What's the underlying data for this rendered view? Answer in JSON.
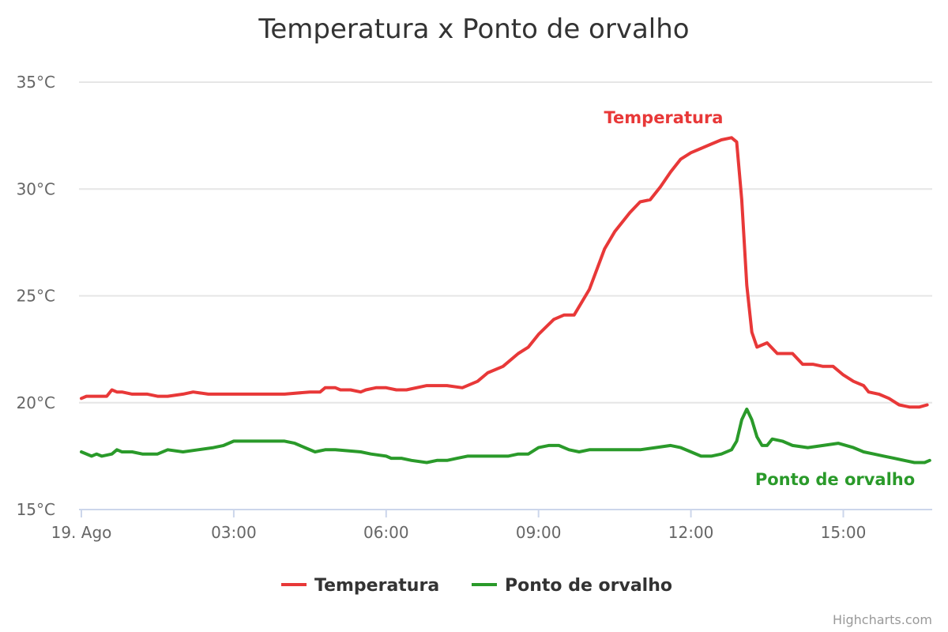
{
  "chart_data": {
    "type": "line",
    "title": "Temperatura x Ponto de orvalho",
    "ylim": [
      15,
      35
    ],
    "y_ticks": [
      "15°C",
      "20°C",
      "25°C",
      "30°C",
      "35°C"
    ],
    "y_tick_values": [
      15,
      20,
      25,
      30,
      35
    ],
    "xlim_hours": [
      0,
      16.75
    ],
    "x_ticks": [
      "19. Ago",
      "03:00",
      "06:00",
      "09:00",
      "12:00",
      "15:00"
    ],
    "x_tick_hours": [
      0,
      3,
      6,
      9,
      12,
      15
    ],
    "grid": true,
    "legend_position": "bottom-center",
    "series": [
      {
        "name": "Temperatura",
        "color": "#e83838",
        "x_hours": [
          0.0,
          0.1,
          0.3,
          0.5,
          0.6,
          0.7,
          0.8,
          1.0,
          1.2,
          1.3,
          1.5,
          1.6,
          1.7,
          2.0,
          2.2,
          2.5,
          2.8,
          3.0,
          4.0,
          4.5,
          4.7,
          4.8,
          5.0,
          5.1,
          5.3,
          5.5,
          5.6,
          5.8,
          6.0,
          6.2,
          6.4,
          6.8,
          7.2,
          7.5,
          7.8,
          8.0,
          8.3,
          8.6,
          8.8,
          9.0,
          9.3,
          9.5,
          9.7,
          10.0,
          10.3,
          10.5,
          10.8,
          11.0,
          11.2,
          11.4,
          11.6,
          11.8,
          12.0,
          12.2,
          12.4,
          12.6,
          12.8,
          12.9,
          13.0,
          13.1,
          13.2,
          13.3,
          13.5,
          13.7,
          13.8,
          14.0,
          14.2,
          14.4,
          14.6,
          14.8,
          15.0,
          15.2,
          15.4,
          15.5,
          15.7,
          15.9,
          16.1,
          16.3,
          16.5,
          16.65
        ],
        "y": [
          20.2,
          20.3,
          20.3,
          20.3,
          20.6,
          20.5,
          20.5,
          20.4,
          20.4,
          20.4,
          20.3,
          20.3,
          20.3,
          20.4,
          20.5,
          20.4,
          20.4,
          20.4,
          20.4,
          20.5,
          20.5,
          20.7,
          20.7,
          20.6,
          20.6,
          20.5,
          20.6,
          20.7,
          20.7,
          20.6,
          20.6,
          20.8,
          20.8,
          20.7,
          21.0,
          21.4,
          21.7,
          22.3,
          22.6,
          23.2,
          23.9,
          24.1,
          24.1,
          25.3,
          27.2,
          28.0,
          28.9,
          29.4,
          29.5,
          30.1,
          30.8,
          31.4,
          31.7,
          31.9,
          32.1,
          32.3,
          32.4,
          32.2,
          29.5,
          25.5,
          23.3,
          22.6,
          22.8,
          22.3,
          22.3,
          22.3,
          21.8,
          21.8,
          21.7,
          21.7,
          21.3,
          21.0,
          20.8,
          20.5,
          20.4,
          20.2,
          19.9,
          19.8,
          19.8,
          19.9
        ]
      },
      {
        "name": "Ponto de orvalho",
        "color": "#2a9a2a",
        "x_hours": [
          0.0,
          0.2,
          0.3,
          0.4,
          0.6,
          0.7,
          0.8,
          1.0,
          1.2,
          1.5,
          1.7,
          2.0,
          2.3,
          2.6,
          2.8,
          3.0,
          4.0,
          4.2,
          4.4,
          4.6,
          4.8,
          5.0,
          5.5,
          5.7,
          6.0,
          6.1,
          6.3,
          6.5,
          6.8,
          7.0,
          7.2,
          7.4,
          7.6,
          7.8,
          8.0,
          8.2,
          8.4,
          8.6,
          8.8,
          9.0,
          9.2,
          9.4,
          9.6,
          9.8,
          10.0,
          10.5,
          11.0,
          11.3,
          11.6,
          11.8,
          12.0,
          12.2,
          12.4,
          12.6,
          12.8,
          12.9,
          13.0,
          13.1,
          13.2,
          13.3,
          13.4,
          13.5,
          13.6,
          13.8,
          14.0,
          14.3,
          14.6,
          14.9,
          15.2,
          15.4,
          15.6,
          15.8,
          16.0,
          16.2,
          16.4,
          16.6,
          16.7
        ],
        "y": [
          17.7,
          17.5,
          17.6,
          17.5,
          17.6,
          17.8,
          17.7,
          17.7,
          17.6,
          17.6,
          17.8,
          17.7,
          17.8,
          17.9,
          18.0,
          18.2,
          18.2,
          18.1,
          17.9,
          17.7,
          17.8,
          17.8,
          17.7,
          17.6,
          17.5,
          17.4,
          17.4,
          17.3,
          17.2,
          17.3,
          17.3,
          17.4,
          17.5,
          17.5,
          17.5,
          17.5,
          17.5,
          17.6,
          17.6,
          17.9,
          18.0,
          18.0,
          17.8,
          17.7,
          17.8,
          17.8,
          17.8,
          17.9,
          18.0,
          17.9,
          17.7,
          17.5,
          17.5,
          17.6,
          17.8,
          18.2,
          19.2,
          19.7,
          19.2,
          18.4,
          18.0,
          18.0,
          18.3,
          18.2,
          18.0,
          17.9,
          18.0,
          18.1,
          17.9,
          17.7,
          17.6,
          17.5,
          17.4,
          17.3,
          17.2,
          17.2,
          17.3
        ]
      }
    ],
    "annotations": [
      "Temperatura",
      "Ponto de orvalho"
    ]
  },
  "credits": "Highcharts.com"
}
